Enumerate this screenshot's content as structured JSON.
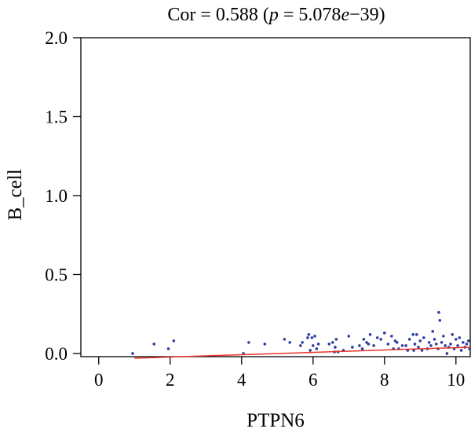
{
  "chart_data": {
    "type": "scatter",
    "title_parts": {
      "prefix": "Cor = 0.588 (",
      "p": "p",
      "eq": " = 5.078",
      "e": "e",
      "suffix": "−39)"
    },
    "xlabel": "PTPN6",
    "ylabel": "B_cell",
    "xlim": [
      -0.5,
      10.4
    ],
    "ylim": [
      -0.02,
      2.0
    ],
    "x_ticks": [
      0,
      2,
      4,
      6,
      8,
      10
    ],
    "x_tick_labels": [
      "0",
      "2",
      "4",
      "6",
      "8",
      "10"
    ],
    "y_ticks": [
      0.0,
      0.5,
      1.0,
      1.5,
      2.0
    ],
    "y_tick_labels": [
      "0.0",
      "0.5",
      "1.0",
      "1.5",
      "2.0"
    ],
    "grid": false,
    "points": [
      [
        0.95,
        0.0
      ],
      [
        1.55,
        0.06
      ],
      [
        1.95,
        0.03
      ],
      [
        2.1,
        0.08
      ],
      [
        4.05,
        0.0
      ],
      [
        4.2,
        0.07
      ],
      [
        4.65,
        0.06
      ],
      [
        5.2,
        0.09
      ],
      [
        5.35,
        0.07
      ],
      [
        5.65,
        0.05
      ],
      [
        5.7,
        0.07
      ],
      [
        5.85,
        0.1
      ],
      [
        5.88,
        0.12
      ],
      [
        5.92,
        0.02
      ],
      [
        5.97,
        0.1
      ],
      [
        6.0,
        0.05
      ],
      [
        6.05,
        0.11
      ],
      [
        6.1,
        0.03
      ],
      [
        6.15,
        0.06
      ],
      [
        6.45,
        0.06
      ],
      [
        6.55,
        0.07
      ],
      [
        6.6,
        0.01
      ],
      [
        6.62,
        0.04
      ],
      [
        6.65,
        0.09
      ],
      [
        6.7,
        0.01
      ],
      [
        6.85,
        0.02
      ],
      [
        7.0,
        0.11
      ],
      [
        7.1,
        0.04
      ],
      [
        7.3,
        0.05
      ],
      [
        7.38,
        0.03
      ],
      [
        7.42,
        0.09
      ],
      [
        7.5,
        0.07
      ],
      [
        7.55,
        0.06
      ],
      [
        7.6,
        0.12
      ],
      [
        7.7,
        0.05
      ],
      [
        7.8,
        0.1
      ],
      [
        7.9,
        0.09
      ],
      [
        8.0,
        0.13
      ],
      [
        8.1,
        0.06
      ],
      [
        8.2,
        0.11
      ],
      [
        8.25,
        0.03
      ],
      [
        8.3,
        0.08
      ],
      [
        8.35,
        0.07
      ],
      [
        8.4,
        0.03
      ],
      [
        8.5,
        0.05
      ],
      [
        8.6,
        0.05
      ],
      [
        8.65,
        0.02
      ],
      [
        8.7,
        0.09
      ],
      [
        8.8,
        0.12
      ],
      [
        8.82,
        0.02
      ],
      [
        8.85,
        0.06
      ],
      [
        8.9,
        0.12
      ],
      [
        8.95,
        0.04
      ],
      [
        9.0,
        0.08
      ],
      [
        9.05,
        0.02
      ],
      [
        9.1,
        0.1
      ],
      [
        9.2,
        0.03
      ],
      [
        9.25,
        0.07
      ],
      [
        9.3,
        0.05
      ],
      [
        9.35,
        0.14
      ],
      [
        9.4,
        0.09
      ],
      [
        9.45,
        0.06
      ],
      [
        9.5,
        0.03
      ],
      [
        9.52,
        0.26
      ],
      [
        9.55,
        0.21
      ],
      [
        9.6,
        0.07
      ],
      [
        9.65,
        0.11
      ],
      [
        9.7,
        0.05
      ],
      [
        9.75,
        0.0
      ],
      [
        9.8,
        0.04
      ],
      [
        9.85,
        0.06
      ],
      [
        9.9,
        0.12
      ],
      [
        9.95,
        0.03
      ],
      [
        10.0,
        0.09
      ],
      [
        10.05,
        0.05
      ],
      [
        10.1,
        0.1
      ],
      [
        10.15,
        0.02
      ],
      [
        10.2,
        0.07
      ],
      [
        10.25,
        0.04
      ],
      [
        10.3,
        0.06
      ],
      [
        10.35,
        0.08
      ],
      [
        10.38,
        0.03
      ]
    ],
    "fit_line": {
      "x": [
        1.0,
        10.4
      ],
      "y": [
        -0.03,
        0.04
      ]
    },
    "colors": {
      "points": "#2E3FA0",
      "fit_line": "#E8322B",
      "axis": "#000000"
    }
  }
}
